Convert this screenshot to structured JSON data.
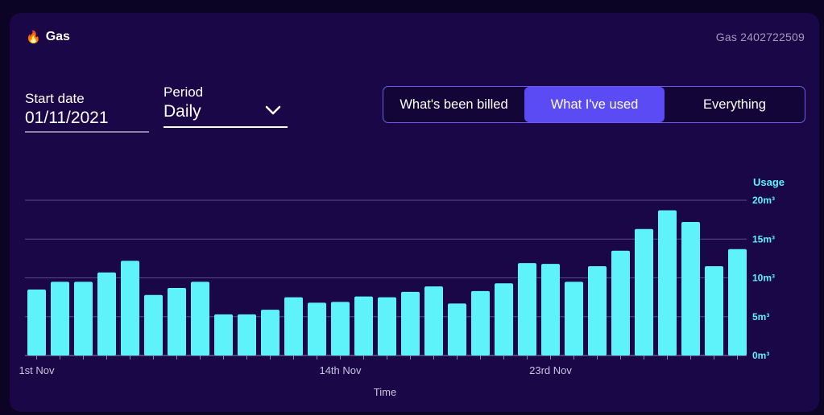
{
  "header": {
    "title": "Gas",
    "title_icon": "flame-icon",
    "account": "Gas 2402722509"
  },
  "controls": {
    "start_date_label": "Start date",
    "start_date_value": "01/11/2021",
    "period_label": "Period",
    "period_value": "Daily"
  },
  "view_toggle": {
    "options": [
      "What's been billed",
      "What I've used",
      "Everything"
    ],
    "selected": "What I've used"
  },
  "colors": {
    "background": "#1a0748",
    "bar": "#5ef2fa",
    "accent": "#5b4bf5",
    "axis_label": "#5ef2fa"
  },
  "chart_data": {
    "type": "bar",
    "ylabel": "Usage",
    "xlabel": "Time",
    "y_unit": "m³",
    "ylim": [
      0,
      20
    ],
    "yticks": [
      "0m³",
      "5m³",
      "10m³",
      "15m³",
      "20m³"
    ],
    "grid": true,
    "categories": [
      "1st Nov",
      "2nd Nov",
      "3rd Nov",
      "4th Nov",
      "5th Nov",
      "6th Nov",
      "7th Nov",
      "8th Nov",
      "9th Nov",
      "10th Nov",
      "11th Nov",
      "12th Nov",
      "13th Nov",
      "14th Nov",
      "15th Nov",
      "16th Nov",
      "17th Nov",
      "18th Nov",
      "19th Nov",
      "20th Nov",
      "21st Nov",
      "22nd Nov",
      "23rd Nov",
      "24th Nov",
      "25th Nov",
      "26th Nov",
      "27th Nov",
      "28th Nov",
      "29th Nov",
      "30th Nov",
      "1st Dec"
    ],
    "xtick_labels": [
      "1st Nov",
      "14th Nov",
      "23rd Nov"
    ],
    "values": [
      8.5,
      9.5,
      9.5,
      10.7,
      12.2,
      7.8,
      8.7,
      9.5,
      5.3,
      5.3,
      5.9,
      7.5,
      6.8,
      6.9,
      7.6,
      7.5,
      8.2,
      8.9,
      6.7,
      8.3,
      9.3,
      11.9,
      11.8,
      9.5,
      11.5,
      13.5,
      16.3,
      18.7,
      17.2,
      11.5,
      13.7
    ]
  }
}
